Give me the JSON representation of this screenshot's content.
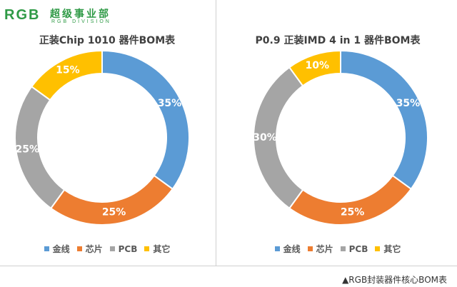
{
  "logo": {
    "text": "RGB",
    "cn_text": "超级事业部",
    "sub_text": "RGB DIVISION"
  },
  "colors": {
    "brand": "#2f9a46",
    "gold_wire": "#5b9bd5",
    "chip": "#ed7d31",
    "pcb": "#a5a5a5",
    "other": "#ffc000"
  },
  "chart_data": [
    {
      "type": "pie",
      "donut": true,
      "title": "正装Chip 1010 器件BOM表",
      "categories": [
        "金线",
        "芯片",
        "PCB",
        "其它"
      ],
      "values": [
        35,
        25,
        25,
        15
      ],
      "labels": [
        "35%",
        "25%",
        "25%",
        "15%"
      ],
      "legend": "bottom"
    },
    {
      "type": "pie",
      "donut": true,
      "title": "P0.9 正装IMD 4 in 1 器件BOM表",
      "categories": [
        "金线",
        "芯片",
        "PCB",
        "其它"
      ],
      "values": [
        35,
        25,
        30,
        10
      ],
      "labels": [
        "35%",
        "25%",
        "30%",
        "10%"
      ],
      "legend": "bottom"
    }
  ],
  "caption": "▲RGB封装器件核心BOM表"
}
